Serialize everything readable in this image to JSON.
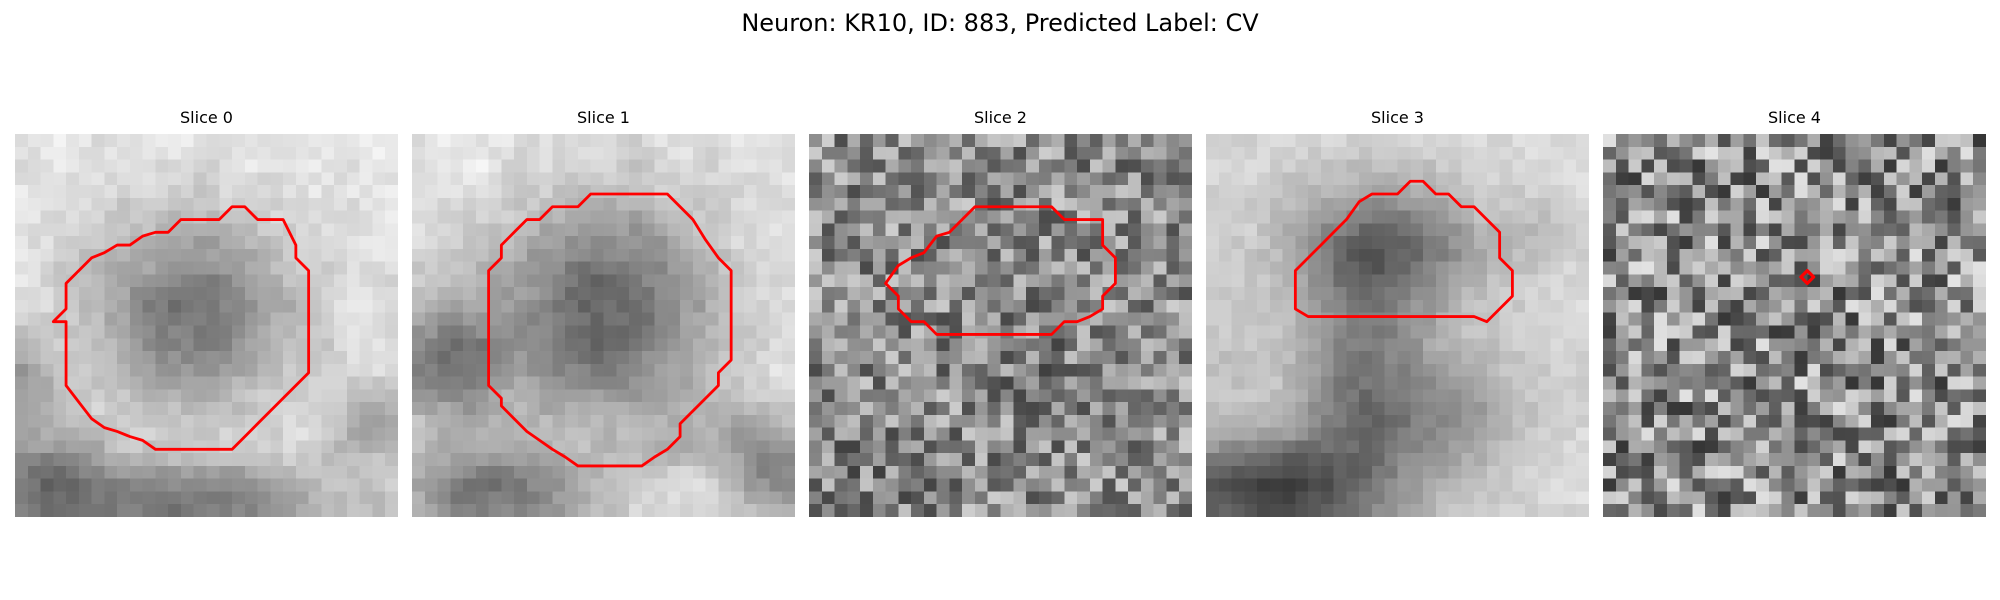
{
  "figure": {
    "title": "Neuron: KR10, ID: 883, Predicted Label: CV"
  },
  "panels": [
    {
      "title": "Slice 0"
    },
    {
      "title": "Slice 1"
    },
    {
      "title": "Slice 2"
    },
    {
      "title": "Slice 3"
    },
    {
      "title": "Slice 4"
    }
  ],
  "colors": {
    "contour": "#ff0000",
    "colormap": "greys"
  }
}
